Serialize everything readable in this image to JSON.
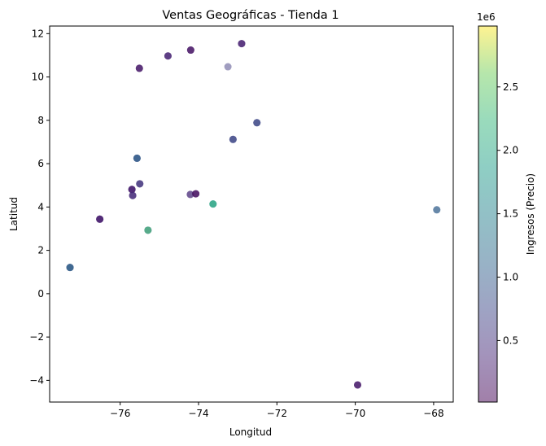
{
  "chart_data": {
    "type": "scatter",
    "title": "Ventas Geográficas - Tienda 1",
    "xlabel": "Longitud",
    "ylabel": "Latitud",
    "xlim": [
      -77.8,
      -67.5
    ],
    "ylim": [
      -5.0,
      12.35
    ],
    "xticks": [
      -76,
      -74,
      -72,
      -70,
      -68
    ],
    "xtick_labels": [
      "−76",
      "−74",
      "−72",
      "−70",
      "−68"
    ],
    "yticks": [
      -4,
      -2,
      0,
      2,
      4,
      6,
      8,
      10,
      12
    ],
    "ytick_labels": [
      "−4",
      "−2",
      "0",
      "2",
      "4",
      "6",
      "8",
      "10",
      "12"
    ],
    "grid": false,
    "colormap": "viridis",
    "point_alpha": 0.5,
    "colorbar": {
      "label": "Ingresos (Precio)",
      "exponent_label": "1e6",
      "range": [
        15000,
        2980000
      ],
      "ticks": [
        500000,
        1000000,
        1500000,
        2000000,
        2500000
      ],
      "tick_labels": [
        "0.5",
        "1.0",
        "1.5",
        "2.0",
        "2.5"
      ]
    },
    "points": [
      {
        "x": -77.28,
        "y": 1.21,
        "c": [
          250000,
          900000,
          1000000,
          1200000
        ]
      },
      {
        "x": -76.52,
        "y": 3.44,
        "c": [
          200000,
          300000,
          400000,
          250000
        ]
      },
      {
        "x": -75.7,
        "y": 4.81,
        "c": [
          100000,
          200000,
          300000,
          350000
        ]
      },
      {
        "x": -75.68,
        "y": 4.53,
        "c": [
          200000,
          400000,
          500000
        ]
      },
      {
        "x": -75.5,
        "y": 5.07,
        "c": [
          300000,
          500000,
          600000
        ]
      },
      {
        "x": -75.57,
        "y": 6.25,
        "c": [
          500000,
          800000,
          1000000,
          1100000
        ]
      },
      {
        "x": -75.51,
        "y": 10.4,
        "c": [
          100000,
          200000,
          300000
        ]
      },
      {
        "x": -75.29,
        "y": 2.93,
        "c": [
          800000,
          1500000,
          2400000
        ]
      },
      {
        "x": -74.78,
        "y": 10.97,
        "c": [
          200000,
          300000,
          400000
        ]
      },
      {
        "x": -74.2,
        "y": 11.24,
        "c": [
          100000,
          150000,
          250000
        ]
      },
      {
        "x": -74.21,
        "y": 4.58,
        "c": [
          300000,
          450000
        ]
      },
      {
        "x": -74.07,
        "y": 4.61,
        "c": [
          50000,
          100000,
          200000
        ]
      },
      {
        "x": -73.63,
        "y": 4.14,
        "c": [
          1500000,
          1900000,
          2100000
        ]
      },
      {
        "x": -73.25,
        "y": 10.47,
        "c": [
          600000
        ]
      },
      {
        "x": -73.12,
        "y": 7.12,
        "c": [
          500000,
          700000,
          800000
        ]
      },
      {
        "x": -72.9,
        "y": 11.54,
        "c": [
          200000,
          300000,
          350000
        ]
      },
      {
        "x": -72.51,
        "y": 7.89,
        "c": [
          600000,
          700000,
          800000
        ]
      },
      {
        "x": -69.94,
        "y": -4.21,
        "c": [
          150000,
          200000,
          300000
        ]
      },
      {
        "x": -67.92,
        "y": 3.87,
        "c": [
          900000,
          1100000
        ]
      }
    ]
  }
}
